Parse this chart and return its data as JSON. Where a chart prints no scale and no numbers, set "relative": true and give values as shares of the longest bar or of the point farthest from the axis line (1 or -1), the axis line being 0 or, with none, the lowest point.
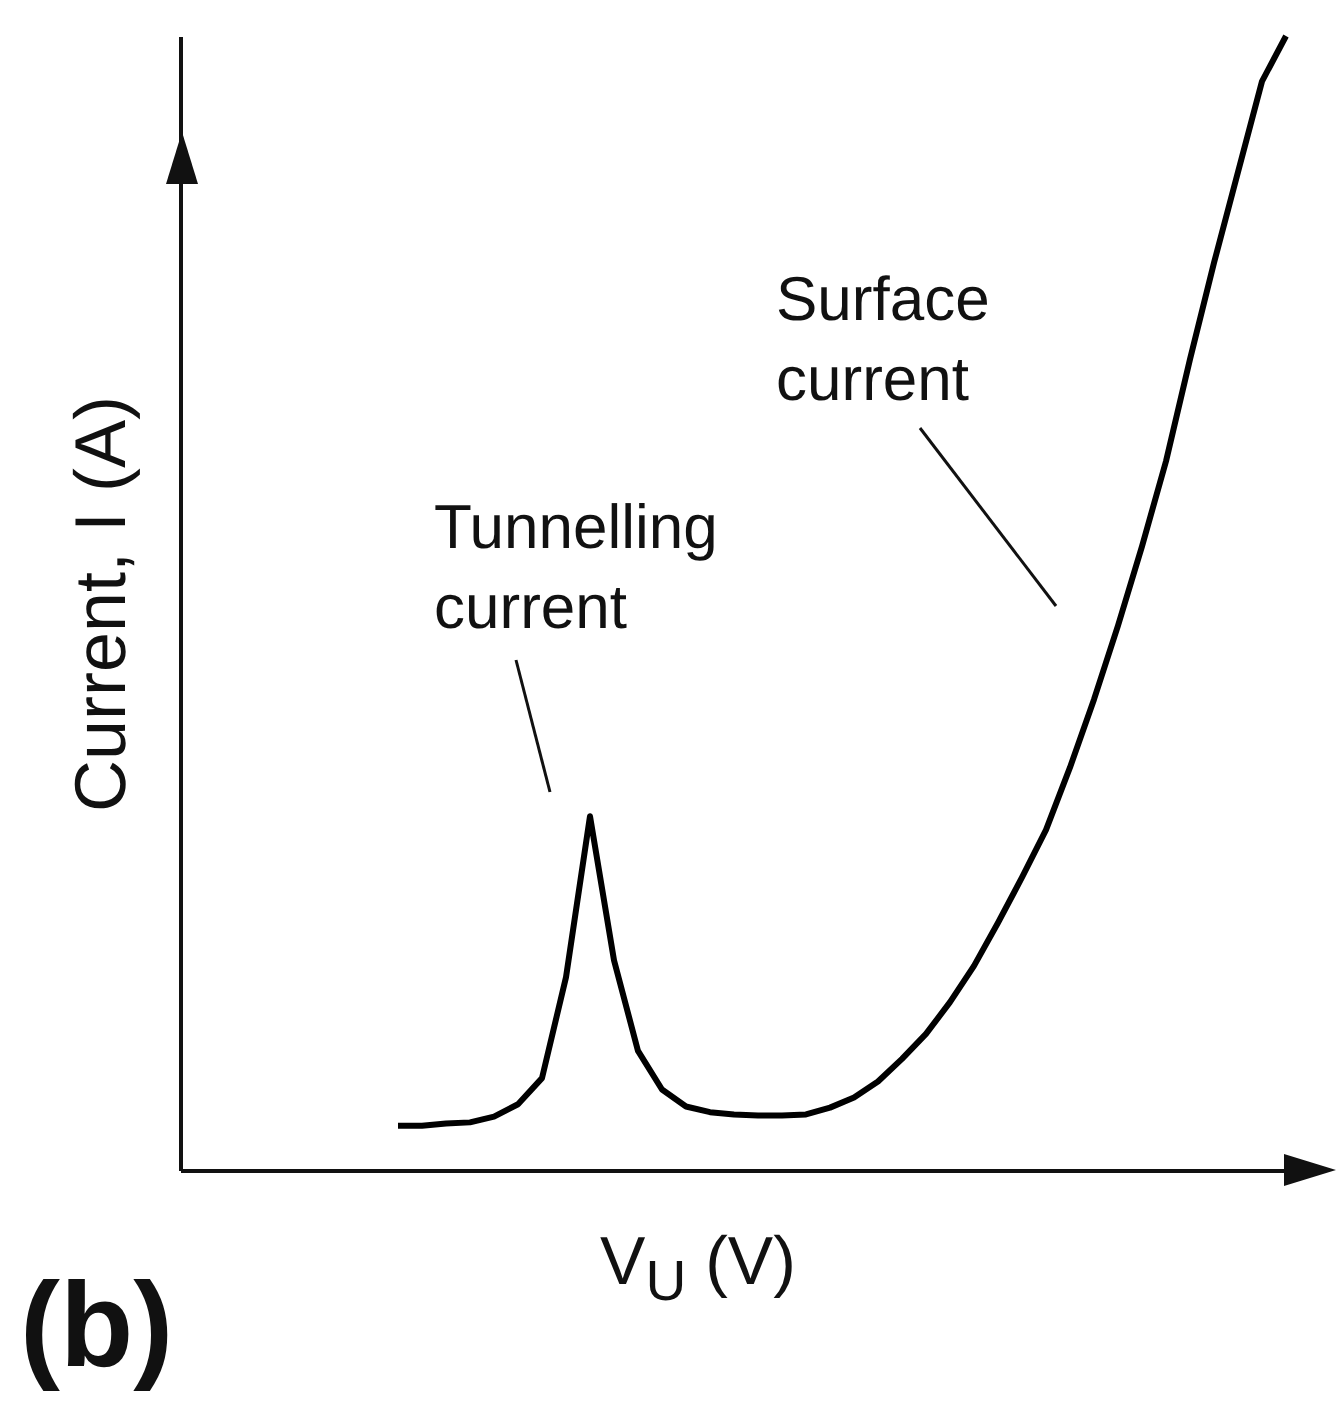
{
  "chart_data": {
    "type": "line",
    "relative": true,
    "xlabel": "V$_{U}$ (V)",
    "ylabel": "Current, I (A)",
    "annotations": [
      "Tunnelling\ncurrent",
      "Surface\ncurrent",
      "(b)"
    ],
    "categories": [
      null,
      null,
      null,
      null,
      null,
      null,
      null,
      null,
      null,
      null,
      null,
      null,
      null,
      null,
      null,
      null,
      null,
      null,
      null,
      null,
      null,
      null,
      null,
      null,
      null,
      null,
      null,
      null,
      null,
      null,
      null,
      null,
      null,
      null,
      null,
      null,
      null,
      null
    ],
    "series": [
      {
        "color": "#000000",
        "values": [
          0.039,
          0.039,
          0.041,
          0.042,
          0.047,
          0.058,
          0.081,
          0.17,
          0.312,
          0.185,
          0.105,
          0.071,
          0.056,
          0.051,
          0.049,
          0.048,
          0.048,
          0.049,
          0.055,
          0.064,
          0.078,
          0.098,
          0.12,
          0.148,
          0.18,
          0.218,
          0.258,
          0.3,
          0.355,
          0.415,
          0.48,
          0.55,
          0.625,
          0.715,
          0.8,
          0.88,
          0.96,
          1
        ]
      }
    ],
    "grid": false,
    "marker": "none",
    "line_style": "solid"
  }
}
